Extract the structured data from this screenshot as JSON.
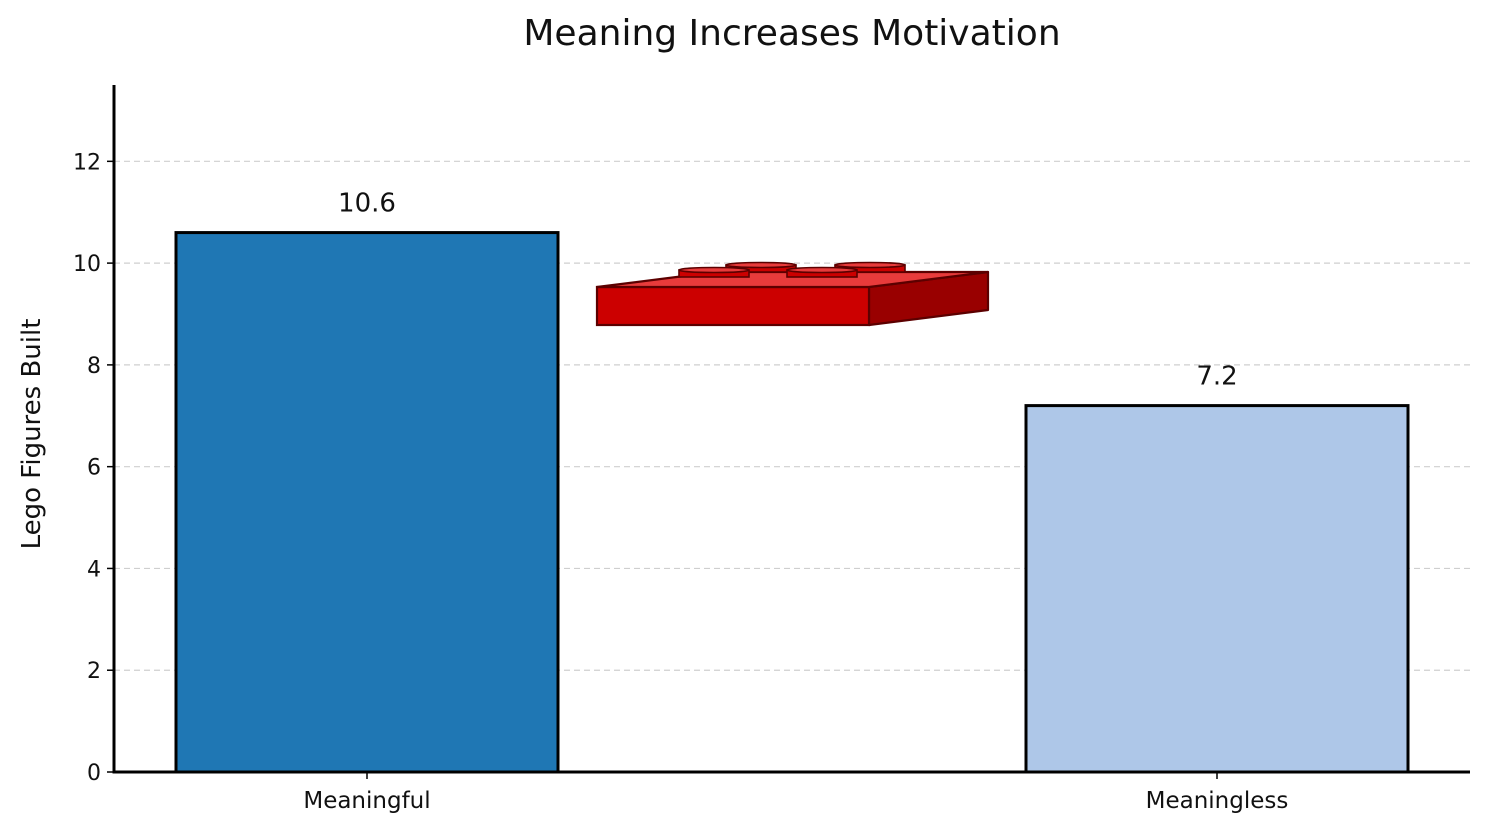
{
  "chart_data": {
    "type": "bar",
    "title": "Meaning Increases Motivation",
    "xlabel": "",
    "ylabel": "Lego Figures Built",
    "categories": [
      "Meaningful",
      "Meaningless"
    ],
    "values": [
      10.6,
      7.2
    ],
    "value_labels": [
      "10.6",
      "7.2"
    ],
    "colors": [
      "#1f77b4",
      "#aec7e8"
    ],
    "ylim": [
      0,
      13.5
    ],
    "yticks": [
      0,
      2,
      4,
      6,
      8,
      10,
      12
    ],
    "ytick_labels": [
      "0",
      "2",
      "4",
      "6",
      "8",
      "10",
      "12"
    ],
    "grid": true,
    "grid_axis": "y",
    "legend": "none",
    "decoration": {
      "icon": "lego-brick-icon",
      "colors": {
        "front": "#cc0000",
        "top": "#e83b3b",
        "side": "#990000",
        "outline": "#5c0000"
      }
    }
  }
}
